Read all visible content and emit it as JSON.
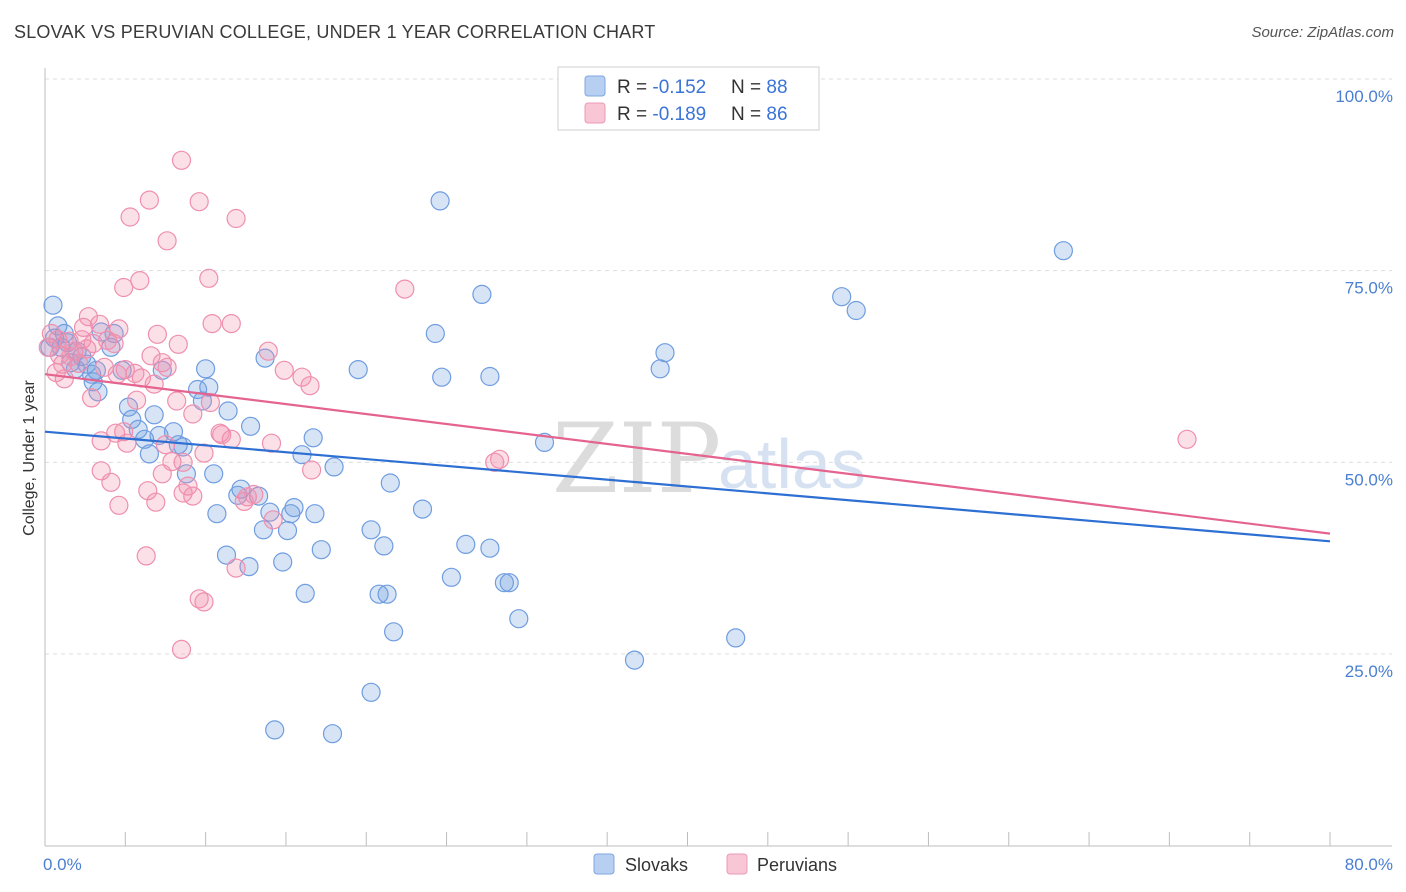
{
  "title": "SLOVAK VS PERUVIAN COLLEGE, UNDER 1 YEAR CORRELATION CHART",
  "source": "Source: ZipAtlas.com",
  "watermark": {
    "zip": "ZIP",
    "atlas": "atlas"
  },
  "legend": {
    "entries": [
      {
        "r_label": "R = ",
        "r_value": "-0.152",
        "n_label": "N = ",
        "n_value": "88"
      },
      {
        "r_label": "R = ",
        "r_value": "-0.189",
        "n_label": "N = ",
        "n_value": "86"
      }
    ]
  },
  "bottom_legend": [
    "Slovaks",
    "Peruvians"
  ],
  "chart_data": {
    "type": "scatter",
    "title": "SLOVAK VS PERUVIAN COLLEGE, UNDER 1 YEAR CORRELATION CHART",
    "xlabel": "",
    "ylabel": "College, Under 1 year",
    "xlim": [
      0,
      80
    ],
    "ylim": [
      0,
      105
    ],
    "x_tick_labels": [
      {
        "value": 0,
        "label": "0.0%"
      },
      {
        "value": 80,
        "label": "80.0%"
      }
    ],
    "y_tick_labels": [
      {
        "value": 25,
        "label": "25.0%"
      },
      {
        "value": 50,
        "label": "50.0%"
      },
      {
        "value": 75,
        "label": "75.0%"
      },
      {
        "value": 100,
        "label": "100.0%"
      }
    ],
    "colors": {
      "slovaks": "#6f9de0",
      "peruvians": "#ef8fae",
      "slovaks_line": "#2d6fd2",
      "peruvians_line": "#e4638f"
    },
    "series": [
      {
        "name": "Slovaks",
        "r": -0.152,
        "n": 88,
        "trend": {
          "x": [
            0,
            80
          ],
          "y": [
            54.0,
            39.7
          ]
        },
        "points": [
          [
            0.5,
            70.5
          ],
          [
            0.8,
            67.8
          ],
          [
            1.2,
            66.8
          ],
          [
            0.6,
            66.2
          ],
          [
            1.4,
            65.6
          ],
          [
            1.0,
            65.0
          ],
          [
            2.0,
            64.5
          ],
          [
            2.3,
            63.8
          ],
          [
            1.6,
            63.0
          ],
          [
            2.6,
            62.8
          ],
          [
            1.9,
            62.2
          ],
          [
            3.2,
            62.0
          ],
          [
            2.9,
            61.5
          ],
          [
            3.5,
            67.0
          ],
          [
            4.3,
            66.8
          ],
          [
            4.1,
            65.0
          ],
          [
            4.8,
            62.0
          ],
          [
            3.0,
            60.5
          ],
          [
            3.3,
            59.2
          ],
          [
            7.3,
            62.0
          ],
          [
            10.0,
            62.2
          ],
          [
            9.5,
            59.5
          ],
          [
            10.2,
            59.8
          ],
          [
            9.8,
            58.0
          ],
          [
            5.2,
            57.2
          ],
          [
            6.8,
            56.2
          ],
          [
            11.4,
            56.7
          ],
          [
            5.4,
            55.6
          ],
          [
            5.8,
            54.3
          ],
          [
            12.8,
            54.7
          ],
          [
            8.0,
            54.0
          ],
          [
            7.1,
            53.5
          ],
          [
            6.2,
            53.0
          ],
          [
            16.7,
            53.2
          ],
          [
            8.3,
            52.3
          ],
          [
            8.6,
            52.0
          ],
          [
            6.5,
            51.1
          ],
          [
            16.0,
            51.0
          ],
          [
            18.0,
            49.4
          ],
          [
            8.8,
            48.5
          ],
          [
            10.5,
            48.5
          ],
          [
            21.5,
            47.3
          ],
          [
            12.2,
            46.5
          ],
          [
            12.0,
            45.7
          ],
          [
            13.3,
            45.6
          ],
          [
            14.0,
            43.5
          ],
          [
            15.5,
            44.1
          ],
          [
            15.3,
            43.3
          ],
          [
            16.8,
            43.3
          ],
          [
            10.7,
            43.3
          ],
          [
            23.5,
            43.9
          ],
          [
            13.6,
            41.2
          ],
          [
            15.1,
            41.1
          ],
          [
            20.3,
            41.2
          ],
          [
            11.3,
            37.9
          ],
          [
            12.7,
            36.4
          ],
          [
            14.8,
            37.0
          ],
          [
            17.2,
            38.6
          ],
          [
            21.1,
            39.1
          ],
          [
            26.2,
            39.3
          ],
          [
            27.7,
            38.8
          ],
          [
            25.3,
            35.0
          ],
          [
            28.6,
            34.3
          ],
          [
            28.9,
            34.3
          ],
          [
            16.2,
            32.9
          ],
          [
            20.8,
            32.8
          ],
          [
            21.3,
            32.8
          ],
          [
            29.5,
            29.6
          ],
          [
            21.7,
            27.9
          ],
          [
            43.0,
            27.1
          ],
          [
            36.7,
            24.2
          ],
          [
            20.3,
            20.0
          ],
          [
            14.3,
            15.1
          ],
          [
            17.9,
            14.6
          ],
          [
            24.6,
            84.1
          ],
          [
            27.2,
            71.9
          ],
          [
            24.3,
            66.8
          ],
          [
            24.7,
            61.1
          ],
          [
            19.5,
            62.1
          ],
          [
            13.7,
            63.6
          ],
          [
            27.7,
            61.2
          ],
          [
            38.3,
            62.2
          ],
          [
            38.6,
            64.3
          ],
          [
            49.6,
            71.6
          ],
          [
            50.5,
            69.8
          ],
          [
            63.4,
            77.6
          ],
          [
            31.1,
            52.6
          ],
          [
            0.3,
            65.0
          ]
        ]
      },
      {
        "name": "Peruvians",
        "r": -0.189,
        "n": 86,
        "trend": {
          "x": [
            0,
            80
          ],
          "y": [
            61.5,
            40.7
          ]
        },
        "points": [
          [
            8.5,
            89.4
          ],
          [
            6.5,
            84.2
          ],
          [
            9.6,
            84.0
          ],
          [
            5.3,
            82.0
          ],
          [
            11.9,
            81.8
          ],
          [
            7.6,
            78.9
          ],
          [
            10.2,
            74.0
          ],
          [
            5.9,
            73.7
          ],
          [
            4.9,
            72.8
          ],
          [
            22.4,
            72.6
          ],
          [
            2.7,
            69.0
          ],
          [
            10.4,
            68.1
          ],
          [
            11.6,
            68.1
          ],
          [
            3.4,
            68.0
          ],
          [
            2.4,
            67.6
          ],
          [
            4.6,
            67.4
          ],
          [
            7.0,
            66.7
          ],
          [
            0.4,
            66.8
          ],
          [
            0.8,
            66.0
          ],
          [
            1.5,
            65.8
          ],
          [
            3.0,
            65.5
          ],
          [
            4.3,
            65.5
          ],
          [
            8.3,
            65.4
          ],
          [
            0.2,
            65.0
          ],
          [
            2.6,
            64.8
          ],
          [
            1.8,
            64.5
          ],
          [
            13.9,
            64.5
          ],
          [
            6.6,
            63.9
          ],
          [
            7.3,
            63.0
          ],
          [
            1.1,
            62.8
          ],
          [
            2.1,
            62.9
          ],
          [
            3.7,
            62.4
          ],
          [
            5.0,
            62.1
          ],
          [
            14.9,
            62.0
          ],
          [
            0.7,
            61.7
          ],
          [
            4.5,
            61.5
          ],
          [
            6.0,
            61.0
          ],
          [
            16.0,
            61.1
          ],
          [
            16.5,
            60.0
          ],
          [
            2.9,
            58.4
          ],
          [
            5.7,
            58.1
          ],
          [
            8.2,
            58.0
          ],
          [
            10.3,
            57.8
          ],
          [
            4.9,
            54.0
          ],
          [
            4.4,
            53.8
          ],
          [
            10.9,
            53.8
          ],
          [
            11.0,
            53.6
          ],
          [
            11.6,
            53.0
          ],
          [
            3.5,
            52.8
          ],
          [
            5.1,
            52.5
          ],
          [
            14.1,
            52.5
          ],
          [
            7.5,
            52.3
          ],
          [
            9.9,
            51.2
          ],
          [
            7.9,
            50.1
          ],
          [
            8.6,
            50.0
          ],
          [
            28.0,
            50.0
          ],
          [
            28.3,
            50.4
          ],
          [
            3.5,
            48.9
          ],
          [
            7.3,
            48.5
          ],
          [
            16.6,
            49.0
          ],
          [
            4.1,
            47.4
          ],
          [
            8.9,
            46.9
          ],
          [
            6.4,
            46.3
          ],
          [
            8.6,
            46.0
          ],
          [
            9.2,
            45.6
          ],
          [
            12.6,
            45.5
          ],
          [
            13.0,
            45.8
          ],
          [
            6.9,
            44.8
          ],
          [
            12.4,
            44.9
          ],
          [
            4.6,
            44.4
          ],
          [
            14.2,
            42.5
          ],
          [
            6.3,
            37.8
          ],
          [
            11.9,
            36.2
          ],
          [
            9.6,
            32.2
          ],
          [
            9.9,
            31.8
          ],
          [
            8.5,
            25.6
          ],
          [
            1.6,
            63.8
          ],
          [
            0.9,
            64.0
          ],
          [
            2.3,
            66.0
          ],
          [
            3.9,
            65.9
          ],
          [
            9.2,
            56.3
          ],
          [
            6.8,
            60.2
          ],
          [
            71.1,
            53.0
          ],
          [
            5.6,
            61.6
          ],
          [
            7.6,
            62.4
          ],
          [
            1.2,
            60.9
          ]
        ]
      }
    ]
  }
}
